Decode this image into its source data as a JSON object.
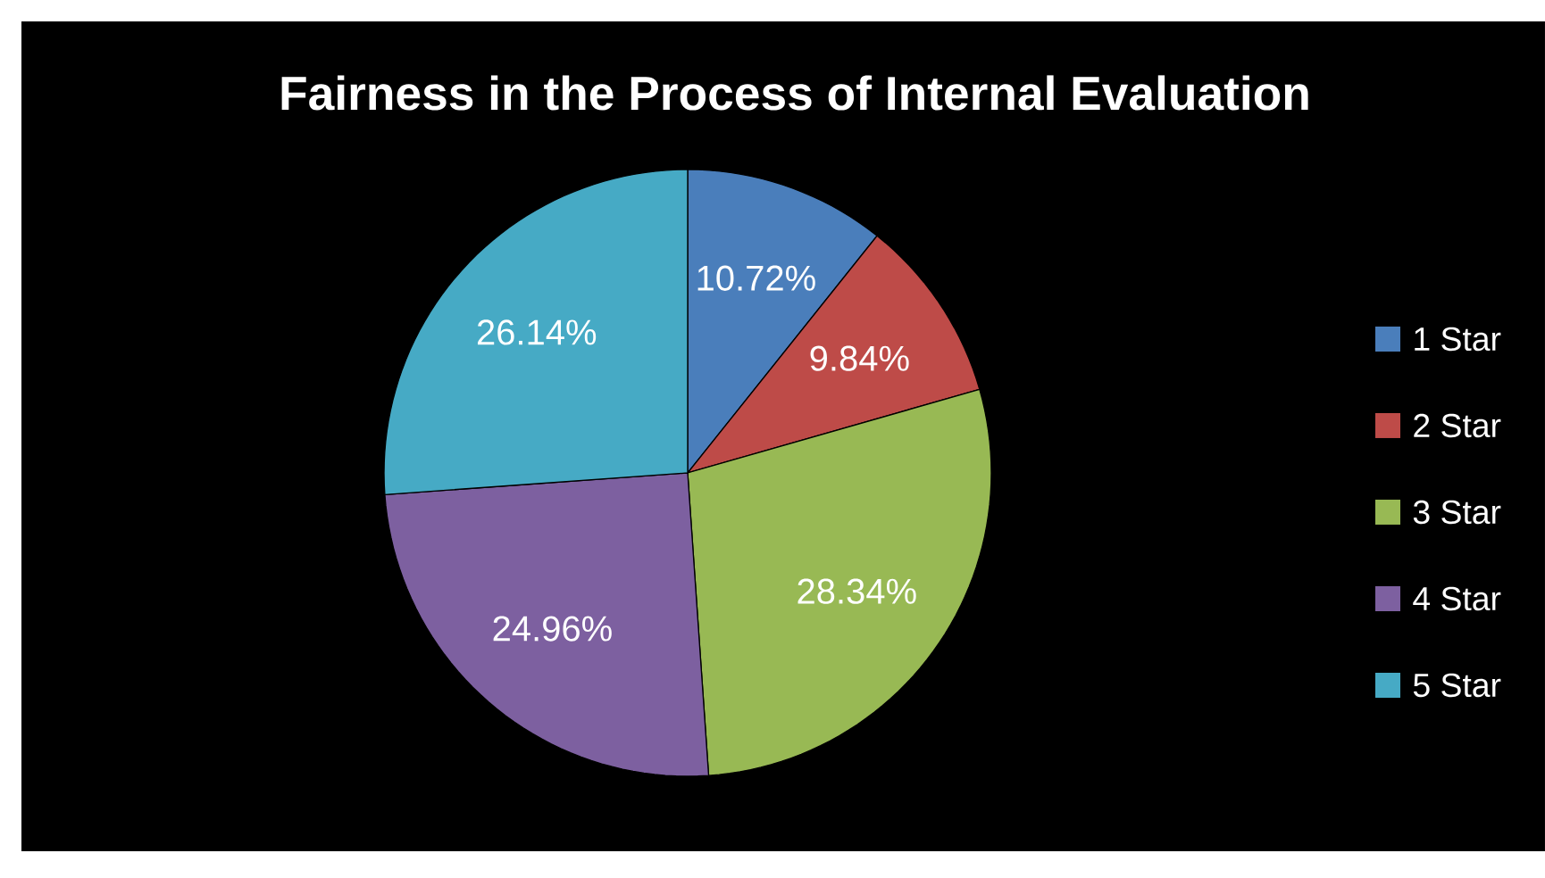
{
  "chart_data": {
    "type": "pie",
    "title": "Fairness in the Process of Internal Evaluation",
    "categories": [
      "1 Star",
      "2 Star",
      "3 Star",
      "4 Star",
      "5 Star"
    ],
    "values": [
      10.72,
      9.84,
      28.34,
      24.96,
      26.14
    ],
    "value_labels": [
      "10.72%",
      "9.84%",
      "28.34%",
      "24.96%",
      "26.14%"
    ],
    "colors": [
      "#4a7ebb",
      "#be4b48",
      "#98b954",
      "#7d60a0",
      "#46aac5"
    ],
    "legend": "right"
  }
}
